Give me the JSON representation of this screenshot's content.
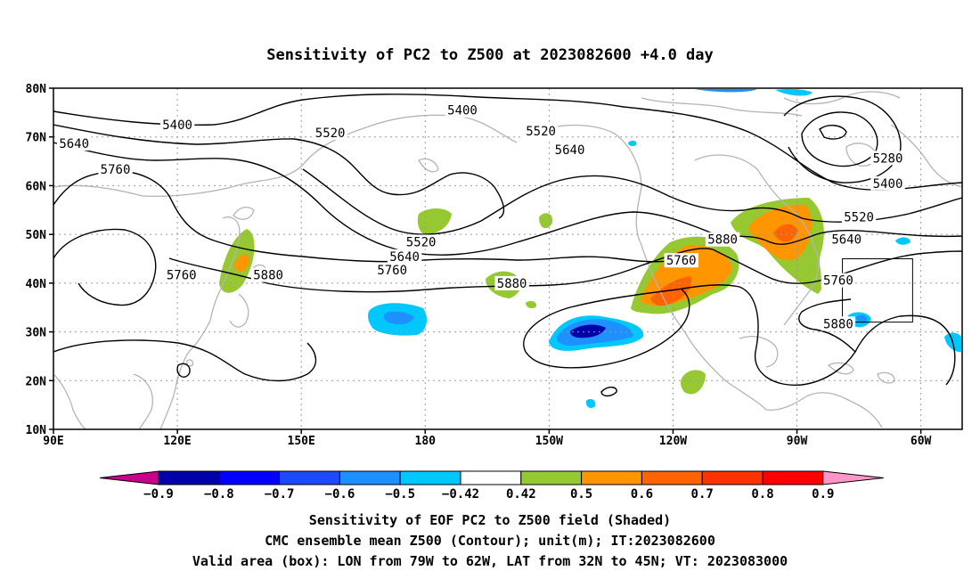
{
  "title": "Sensitivity of PC2 to Z500 at 2023082600 +4.0 day",
  "footer": {
    "line1": "Sensitivity of EOF PC2 to Z500 field (Shaded)",
    "line2": "CMC ensemble mean Z500 (Contour); unit(m); IT:2023082600",
    "line3": "Valid area (box): LON from 79W to 62W, LAT from 32N to 45N; VT: 2023083000"
  },
  "axes": {
    "lat_ticks": [
      "80N",
      "70N",
      "60N",
      "50N",
      "40N",
      "30N",
      "20N",
      "10N"
    ],
    "lon_ticks": [
      "90E",
      "120E",
      "150E",
      "180",
      "150W",
      "120W",
      "90W",
      "60W"
    ]
  },
  "contour_labels": [
    {
      "text": "5400",
      "lon": 189,
      "lat": 75.3
    },
    {
      "text": "5400",
      "lon": 120,
      "lat": 72.3
    },
    {
      "text": "5520",
      "lon": 157,
      "lat": 70.7
    },
    {
      "text": "5520",
      "lon": 208,
      "lat": 71.0
    },
    {
      "text": "5640",
      "lon": 95,
      "lat": 68.5
    },
    {
      "text": "5640",
      "lon": 215,
      "lat": 67.2
    },
    {
      "text": "5760",
      "lon": 105,
      "lat": 63.2
    },
    {
      "text": "5280",
      "lon": 292,
      "lat": 65.5
    },
    {
      "text": "5400",
      "lon": 292,
      "lat": 60.3
    },
    {
      "text": "5520",
      "lon": 285,
      "lat": 53.4
    },
    {
      "text": "5640",
      "lon": 282,
      "lat": 48.8
    },
    {
      "text": "5760",
      "lon": 280,
      "lat": 40.4
    },
    {
      "text": "5880",
      "lon": 280,
      "lat": 31.5
    },
    {
      "text": "5880",
      "lon": 252,
      "lat": 48.8
    },
    {
      "text": "5760",
      "lon": 242,
      "lat": 44.5
    },
    {
      "text": "5520",
      "lon": 179,
      "lat": 48.3
    },
    {
      "text": "5640",
      "lon": 175,
      "lat": 45.3
    },
    {
      "text": "5760",
      "lon": 172,
      "lat": 42.5
    },
    {
      "text": "5880",
      "lon": 201,
      "lat": 39.8
    },
    {
      "text": "5760",
      "lon": 121,
      "lat": 41.5
    },
    {
      "text": "5880",
      "lon": 142,
      "lat": 41.5
    }
  ],
  "valid_box": {
    "lon_west": 281,
    "lon_east": 298,
    "lat_south": 32,
    "lat_north": 45
  },
  "colorbar": {
    "labels": [
      "-0.9",
      "-0.8",
      "-0.7",
      "-0.6",
      "-0.5",
      "-0.42",
      "0.42",
      "0.5",
      "0.6",
      "0.7",
      "0.8",
      "0.9"
    ],
    "colors": [
      "#0000a8",
      "#0000ff",
      "#1e4aff",
      "#1e90ff",
      "#00c8ff",
      "#ffffff",
      "#96c832",
      "#ff9600",
      "#ff6400",
      "#ff3200",
      "#ff0000"
    ],
    "low_extend_color": "#c8008c",
    "high_extend_color": "#ff96c8"
  },
  "colors": {
    "green": "#96c832",
    "orange": "#ff9600",
    "dark_orange": "#ff6400",
    "cyan": "#00c8ff",
    "blue": "#1e90ff",
    "dark_blue": "#0000a8",
    "coast": "#b4b4b4"
  }
}
